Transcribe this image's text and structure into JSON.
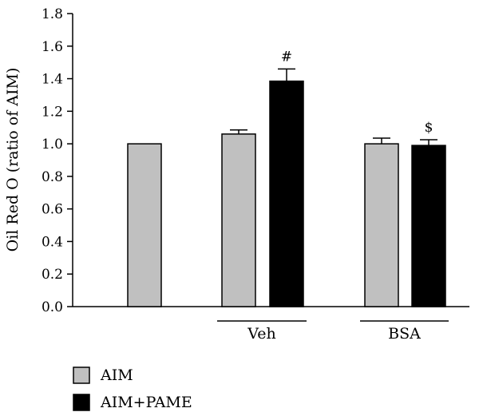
{
  "chart_data": {
    "type": "bar",
    "title": "",
    "xlabel": "",
    "ylabel": "Oil Red O (ratio of AIM)",
    "ylim": [
      0,
      1.8
    ],
    "yticks": [
      "0.0",
      "0.2",
      "0.4",
      "0.6",
      "0.8",
      "1.0",
      "1.2",
      "1.4",
      "1.6",
      "1.8"
    ],
    "group_labels": [
      "Veh",
      "BSA"
    ],
    "legend": {
      "position": "bottom-left",
      "entries": [
        {
          "name": "AIM",
          "color": "#c0c0c0"
        },
        {
          "name": "AIM+PAME",
          "color": "#000000"
        }
      ]
    },
    "bars": [
      {
        "group": "",
        "series": "AIM",
        "value": 1.0,
        "error": 0,
        "annotation": ""
      },
      {
        "group": "Veh",
        "series": "AIM",
        "value": 1.06,
        "error": 0.025,
        "annotation": ""
      },
      {
        "group": "Veh",
        "series": "AIM+PAME",
        "value": 1.385,
        "error": 0.075,
        "annotation": "#"
      },
      {
        "group": "BSA",
        "series": "AIM",
        "value": 1.0,
        "error": 0.035,
        "annotation": ""
      },
      {
        "group": "BSA",
        "series": "AIM+PAME",
        "value": 0.99,
        "error": 0.035,
        "annotation": "$"
      }
    ],
    "grid": false
  }
}
